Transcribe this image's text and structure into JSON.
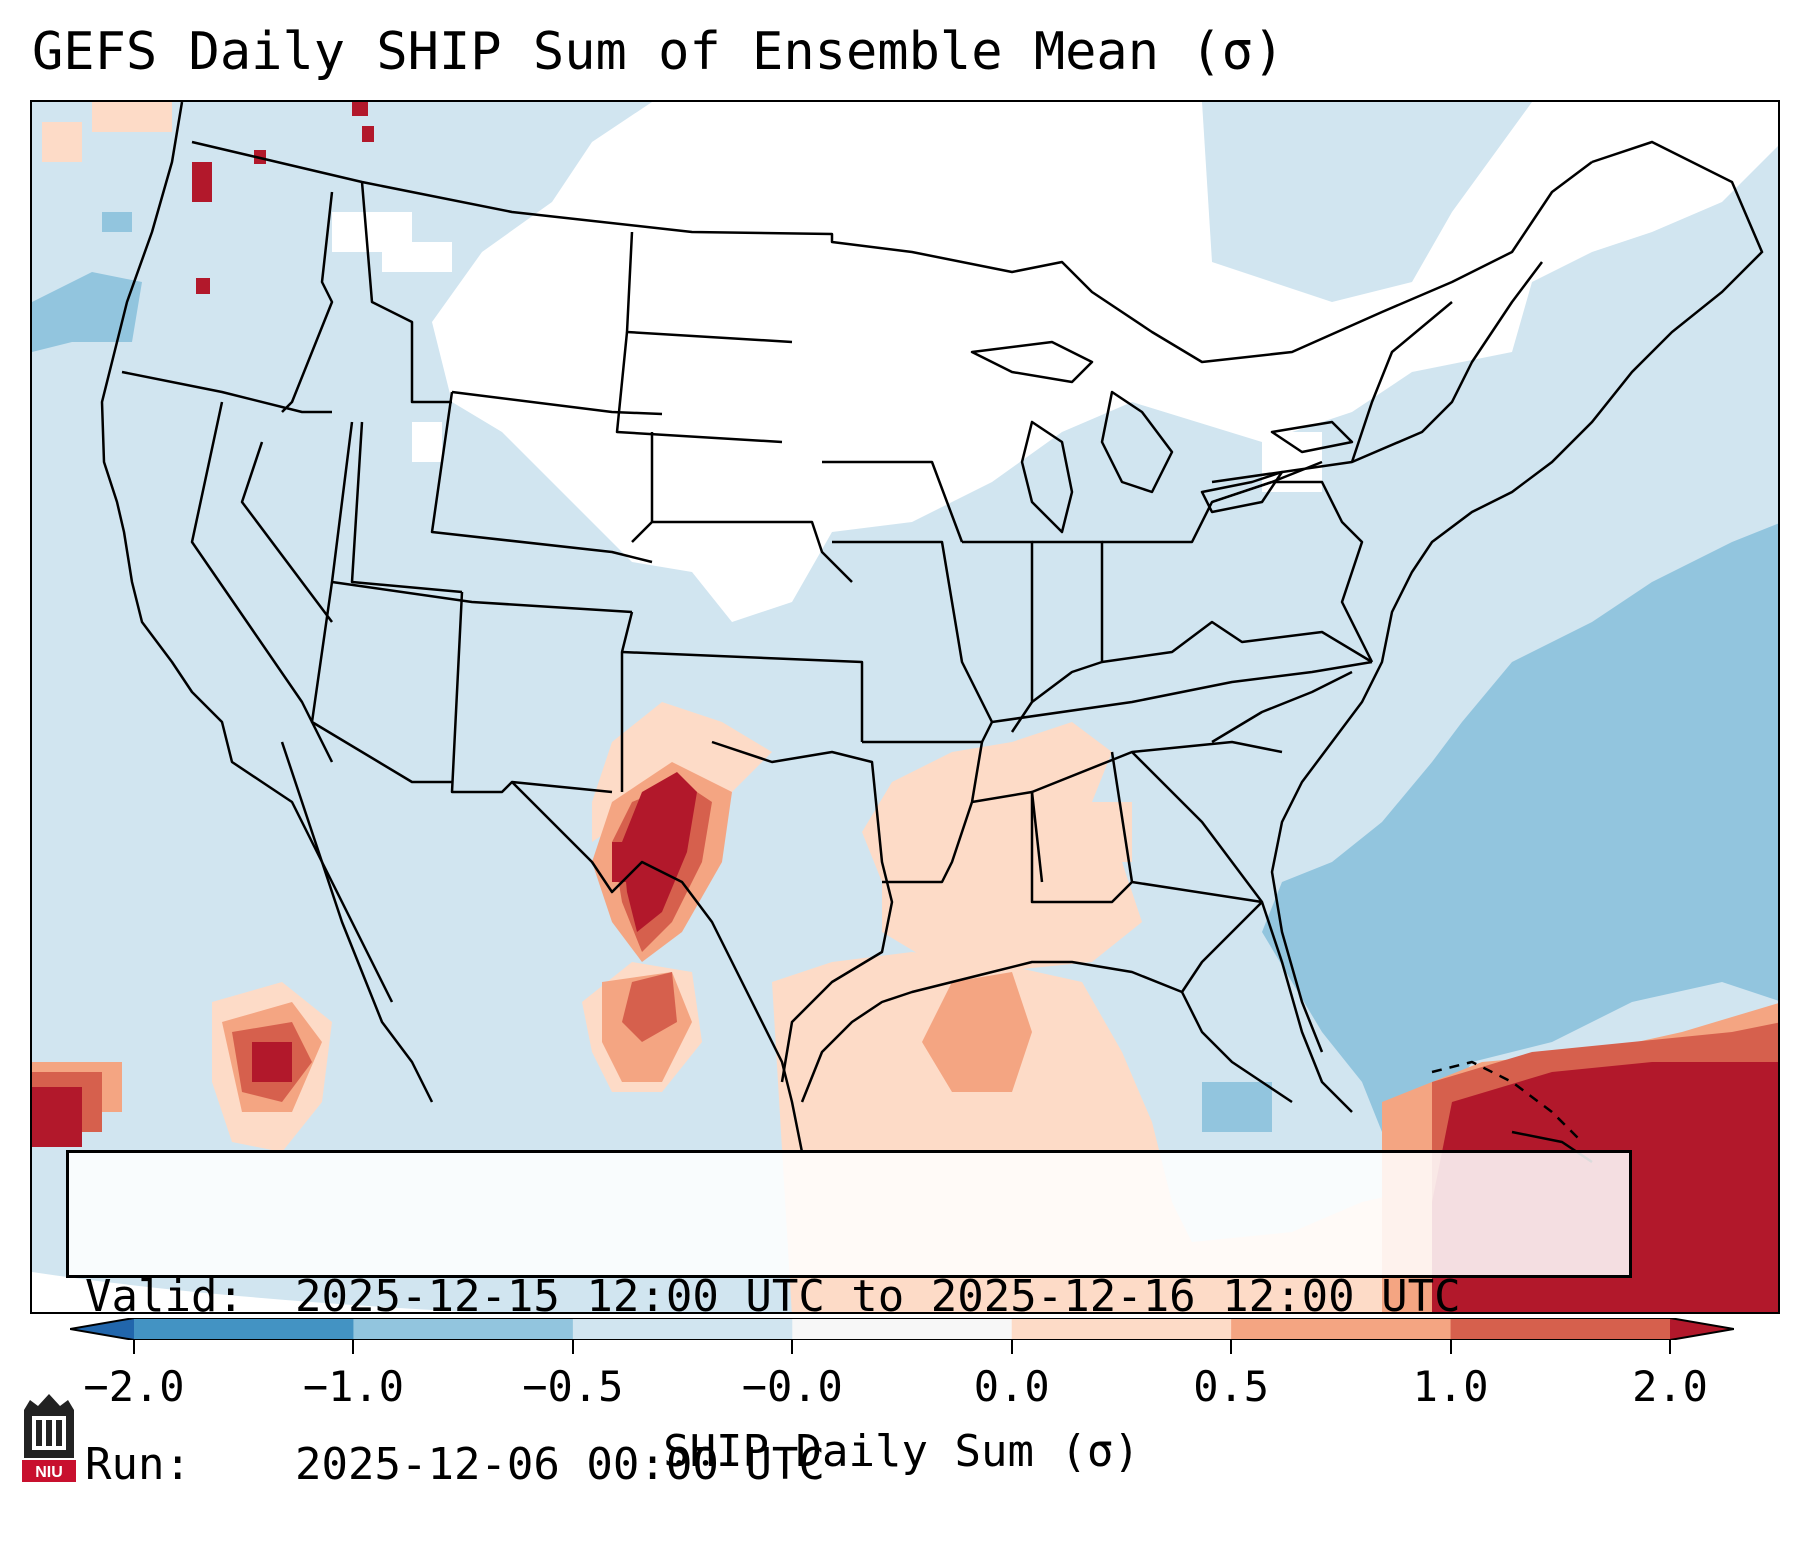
{
  "title": "GEFS Daily SHIP Sum of Ensemble Mean (σ)",
  "info": {
    "valid_label": "Valid:",
    "valid_value": "2025-12-15 12:00 UTC to 2025-12-16 12:00 UTC",
    "run_label": "Run:",
    "run_value": "2025-12-06 00:00 UTC"
  },
  "colorbar": {
    "label": "SHIP Daily Sum (σ)",
    "ticks": [
      "−2.0",
      "−1.0",
      "−0.5",
      "−0.0",
      "0.0",
      "0.5",
      "1.0",
      "2.0"
    ],
    "bins": [
      {
        "from": -2.0,
        "to": -1.0,
        "color": "#4393c3"
      },
      {
        "from": -1.0,
        "to": -0.5,
        "color": "#92c5de"
      },
      {
        "from": -0.5,
        "to": 0.0,
        "color": "#d1e5f0"
      },
      {
        "from": 0.0,
        "to": 0.0,
        "color": "#f7f7f7"
      },
      {
        "from": 0.0,
        "to": 0.5,
        "color": "#fddbc7"
      },
      {
        "from": 0.5,
        "to": 1.0,
        "color": "#f4a582"
      },
      {
        "from": 1.0,
        "to": 2.0,
        "color": "#d6604d"
      },
      {
        "from": 2.0,
        "to": 3.0,
        "color": "#b2182b"
      }
    ],
    "extend_low_color": "#2166ac",
    "extend_high_color": "#b2182b"
  },
  "map": {
    "region": "Contiguous United States",
    "colors": {
      "background": "#d1e5f0",
      "neutral": "#ffffff",
      "light_blue": "#92c5de",
      "light_red": "#fddbc7",
      "mid_red": "#f4a582",
      "red": "#d6604d",
      "dark_red": "#b2182b",
      "borders": "#000000"
    }
  },
  "logo": {
    "name": "university-logo",
    "text": "NIU"
  }
}
